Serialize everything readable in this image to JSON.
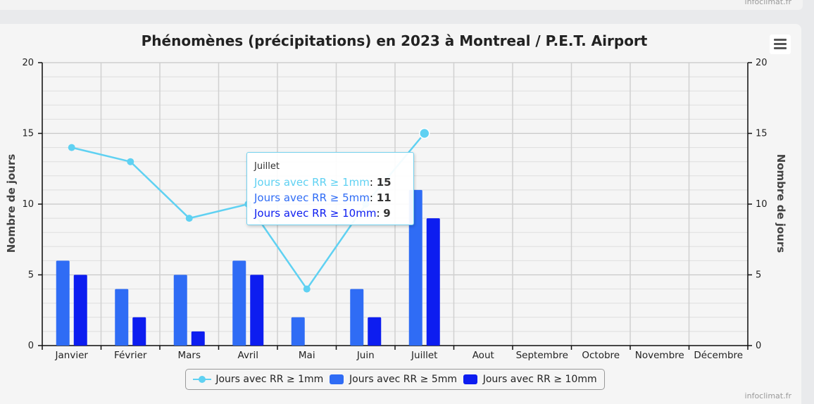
{
  "credit": "infoclimat.fr",
  "chart_data": {
    "type": "bar",
    "title": "Phénomènes (précipitations) en 2023 à Montreal / P.E.T. Airport",
    "ylabel": "Nombre de jours",
    "ylabel_right": "Nombre de jours",
    "ylim": [
      0,
      20
    ],
    "yticks": [
      0,
      5,
      10,
      15,
      20
    ],
    "categories": [
      "Janvier",
      "Février",
      "Mars",
      "Avril",
      "Mai",
      "Juin",
      "Juillet",
      "Aout",
      "Septembre",
      "Octobre",
      "Novembre",
      "Décembre"
    ],
    "series": [
      {
        "name": "Jours avec RR ≥ 1mm",
        "type": "line",
        "color": "#5fd1f2",
        "values": [
          14,
          13,
          9,
          10,
          4,
          10,
          15,
          null,
          null,
          null,
          null,
          null
        ]
      },
      {
        "name": "Jours avec RR ≥ 5mm",
        "type": "bar",
        "color": "#2f6cf5",
        "values": [
          6,
          4,
          5,
          6,
          2,
          4,
          11,
          null,
          null,
          null,
          null,
          null
        ]
      },
      {
        "name": "Jours avec RR ≥ 10mm",
        "type": "bar",
        "color": "#0d1df0",
        "values": [
          5,
          2,
          1,
          5,
          0,
          2,
          9,
          null,
          null,
          null,
          null,
          null
        ]
      }
    ],
    "grid": true,
    "legend_position": "bottom-center"
  },
  "tooltip": {
    "header": "Juillet",
    "rows": [
      {
        "label": "Jours avec RR ≥ 1mm",
        "value": "15",
        "color": "#5fd1f2"
      },
      {
        "label": "Jours avec RR ≥ 5mm",
        "value": "11",
        "color": "#2f6cf5"
      },
      {
        "label": "Jours avec RR ≥ 10mm",
        "value": "9",
        "color": "#0d1df0"
      }
    ]
  }
}
